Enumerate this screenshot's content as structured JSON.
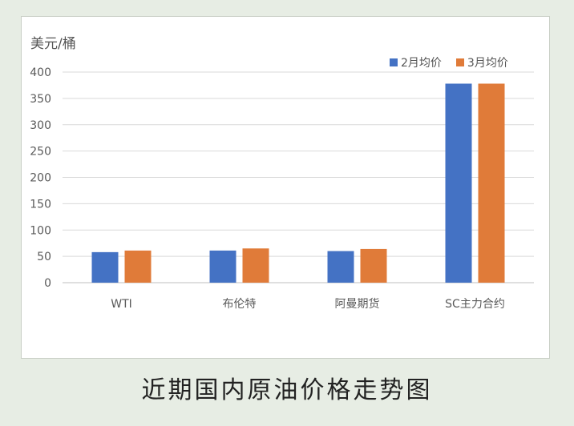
{
  "caption": "近期国内原油价格走势图",
  "chart_data": {
    "type": "bar",
    "ylabel": "美元/桶",
    "categories": [
      "WTI",
      "布伦特",
      "阿曼期货",
      "SC主力合约"
    ],
    "series": [
      {
        "name": "2月均价",
        "color": "#4472c4",
        "values": [
          58,
          61,
          60,
          378
        ]
      },
      {
        "name": "3月均价",
        "color": "#e07b39",
        "values": [
          61,
          65,
          64,
          378
        ]
      }
    ],
    "ylim": [
      0,
      400
    ],
    "yticks": [
      0,
      50,
      100,
      150,
      200,
      250,
      300,
      350,
      400
    ],
    "grid": true,
    "legend": "top-right"
  }
}
